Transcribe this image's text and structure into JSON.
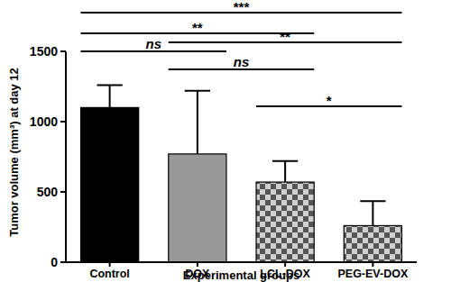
{
  "chart_data": {
    "type": "bar",
    "y_label": "Tumor volume (mm³) at day 12",
    "x_label": "Experimental groups",
    "categories": [
      "Control",
      "DOX",
      "LCL-DOX",
      "PEG-EV-DOX"
    ],
    "values": [
      1100,
      770,
      570,
      260
    ],
    "errors": [
      160,
      450,
      150,
      175
    ],
    "colors": [
      "#000000",
      "#999999",
      "#555555",
      "#555555"
    ],
    "ylim": [
      0,
      1500
    ],
    "yticks": [
      0,
      500,
      1000,
      1500
    ],
    "grid": false,
    "comparisons": [
      {
        "groups": [
          0,
          3
        ],
        "label": "***"
      },
      {
        "groups": [
          0,
          2
        ],
        "label": "**"
      },
      {
        "groups": [
          1,
          3
        ],
        "label": "**"
      },
      {
        "groups": [
          0,
          1
        ],
        "label": "ns"
      },
      {
        "groups": [
          1,
          2
        ],
        "label": "ns"
      },
      {
        "groups": [
          2,
          3
        ],
        "label": "*"
      }
    ]
  }
}
